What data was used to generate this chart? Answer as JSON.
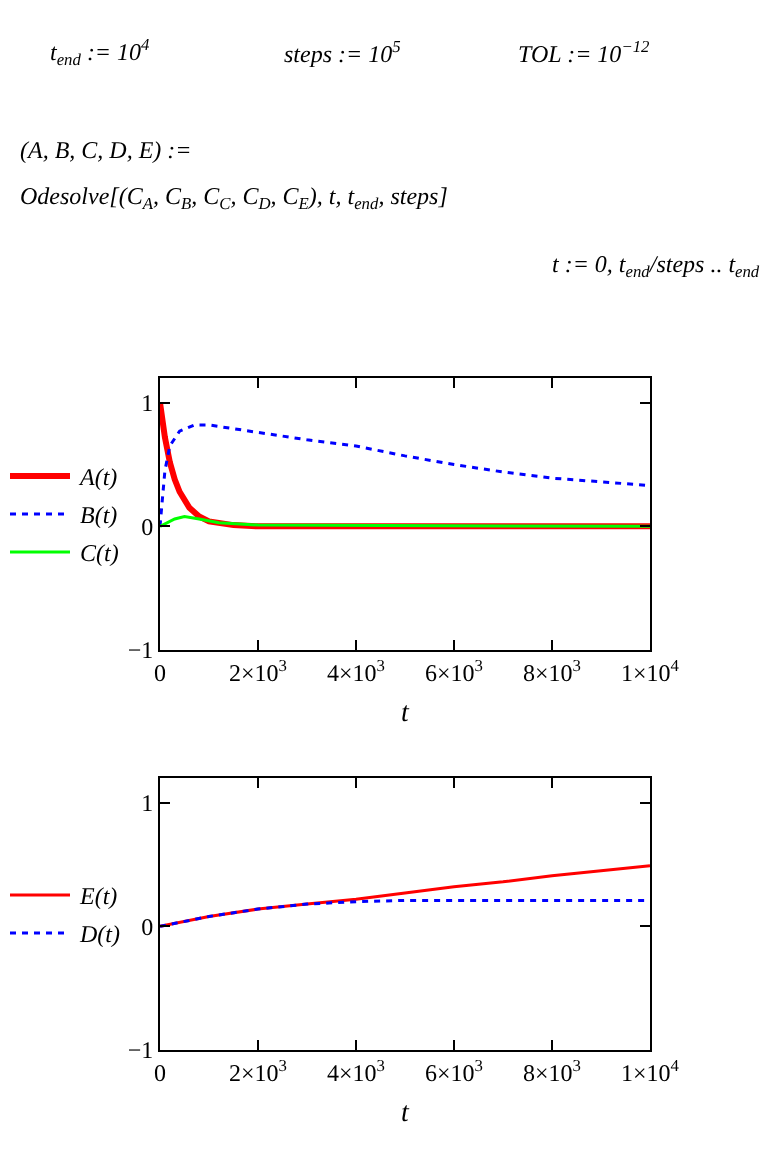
{
  "chart_data": [
    {
      "type": "line",
      "xlabel": "t",
      "legend": "left",
      "annotations": [
        "t$_{end}$ := 10$^{4}$",
        "steps := 10$^{5}$",
        "TOL := 10$^{−12}$",
        "(A, B, C, D, E) :=",
        "Odesolve[(C$_{A}$, C$_{B}$, C$_{C}$, C$_{D}$, C$_{E}$), t, t$_{end}$, steps]",
        "t := 0, t$_{end}$/steps .. t$_{end}$"
      ],
      "xlim": [
        0,
        10000
      ],
      "ylim": [
        -1,
        1.2
      ],
      "xticks": [
        0,
        {
          "value": 2000,
          "label": "2×10$^{3}$"
        },
        {
          "value": 4000,
          "label": "4×10$^{3}$"
        },
        {
          "value": 6000,
          "label": "6×10$^{3}$"
        },
        {
          "value": 8000,
          "label": "8×10$^{3}$"
        },
        {
          "value": 10000,
          "label": "1×10$^{4}$"
        }
      ],
      "yticks": [
        -1,
        0,
        1
      ],
      "series": [
        {
          "name": "A(t)",
          "color": "#ff0000",
          "line_style": "solid",
          "x": [
            0,
            100,
            200,
            300,
            400,
            600,
            800,
            1000,
            1500,
            2000,
            10000
          ],
          "values": [
            1,
            0.72,
            0.52,
            0.38,
            0.28,
            0.15,
            0.08,
            0.04,
            0.01,
            0,
            0
          ]
        },
        {
          "name": "B(t)",
          "color": "#0000ff",
          "line_style": "dotted",
          "x": [
            0,
            100,
            200,
            400,
            700,
            1000,
            2000,
            3000,
            4000,
            5000,
            6000,
            7000,
            8000,
            9000,
            10000
          ],
          "values": [
            0,
            0.45,
            0.65,
            0.77,
            0.82,
            0.82,
            0.76,
            0.7,
            0.65,
            0.57,
            0.5,
            0.44,
            0.39,
            0.36,
            0.33
          ]
        },
        {
          "name": "C(t)",
          "color": "#00ff00",
          "line_style": "solid",
          "x": [
            0,
            300,
            500,
            800,
            1200,
            2000,
            10000
          ],
          "values": [
            0,
            0.06,
            0.08,
            0.06,
            0.03,
            0.01,
            0
          ]
        }
      ]
    },
    {
      "type": "line",
      "xlabel": "t",
      "legend": "left",
      "xlim": [
        0,
        10000
      ],
      "ylim": [
        -1,
        1.2
      ],
      "xticks": [
        0,
        {
          "value": 2000,
          "label": "2×10$^{3}$"
        },
        {
          "value": 4000,
          "label": "4×10$^{3}$"
        },
        {
          "value": 6000,
          "label": "6×10$^{3}$"
        },
        {
          "value": 8000,
          "label": "8×10$^{3}$"
        },
        {
          "value": 10000,
          "label": "1×10$^{4}$"
        }
      ],
      "yticks": [
        -1,
        0,
        1
      ],
      "series": [
        {
          "name": "E(t)",
          "color": "#ff0000",
          "line_style": "solid",
          "x": [
            0,
            1000,
            2000,
            3000,
            4000,
            5000,
            6000,
            7000,
            8000,
            9000,
            10000
          ],
          "values": [
            0,
            0.08,
            0.14,
            0.18,
            0.22,
            0.27,
            0.32,
            0.36,
            0.41,
            0.45,
            0.49
          ]
        },
        {
          "name": "D(t)",
          "color": "#0000ff",
          "line_style": "dotted",
          "x": [
            0,
            1000,
            2000,
            3000,
            4000,
            5000,
            6000,
            8000,
            10000
          ],
          "values": [
            0,
            0.08,
            0.14,
            0.18,
            0.2,
            0.21,
            0.21,
            0.21,
            0.21
          ]
        }
      ]
    }
  ]
}
